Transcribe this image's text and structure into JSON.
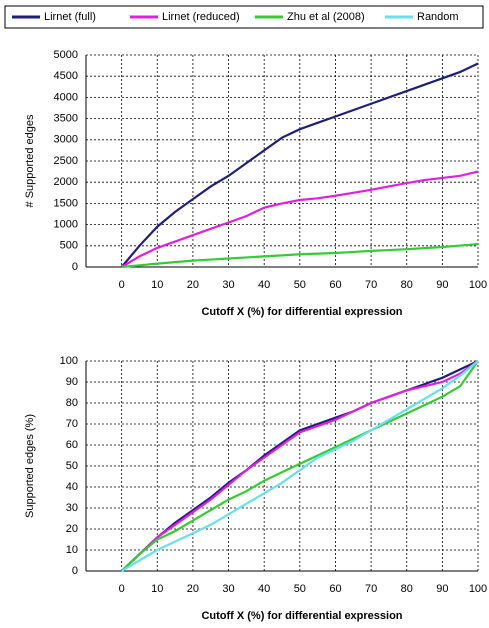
{
  "legend": [
    {
      "name": "Lirnet (full)",
      "color": "#1f1f7a"
    },
    {
      "name": "Lirnet (reduced)",
      "color": "#e020e0"
    },
    {
      "name": "Zhu et al (2008)",
      "color": "#33cc33"
    },
    {
      "name": "Random",
      "color": "#66e0ee"
    }
  ],
  "chart_data": [
    {
      "type": "line",
      "x_label": "Cutoff X (%) for differential expression",
      "y_label": "# Supported edges",
      "x": [
        0,
        5,
        10,
        15,
        20,
        25,
        30,
        35,
        40,
        45,
        50,
        55,
        60,
        65,
        70,
        75,
        80,
        85,
        90,
        95,
        100
      ],
      "series": [
        {
          "color": "#1f1f7a",
          "values": [
            0,
            500,
            950,
            1300,
            1600,
            1900,
            2150,
            2450,
            2750,
            3050,
            3250,
            3400,
            3550,
            3700,
            3850,
            4000,
            4150,
            4300,
            4450,
            4600,
            4800
          ]
        },
        {
          "color": "#e020e0",
          "values": [
            0,
            250,
            450,
            600,
            750,
            900,
            1050,
            1200,
            1400,
            1500,
            1580,
            1620,
            1680,
            1750,
            1820,
            1900,
            1980,
            2050,
            2100,
            2150,
            2250
          ]
        },
        {
          "color": "#33cc33",
          "values": [
            0,
            40,
            80,
            115,
            150,
            175,
            200,
            225,
            250,
            275,
            300,
            315,
            330,
            355,
            380,
            400,
            420,
            445,
            470,
            505,
            540
          ]
        }
      ],
      "xlim": [
        -10,
        100
      ],
      "xticks": [
        0,
        10,
        20,
        30,
        40,
        50,
        60,
        70,
        80,
        90,
        100
      ],
      "ylim": [
        0,
        5000
      ],
      "yticks": [
        0,
        500,
        1000,
        1500,
        2000,
        2500,
        3000,
        3500,
        4000,
        4500,
        5000
      ],
      "grid": true
    },
    {
      "type": "line",
      "x_label": "Cutoff X (%) for differential expression",
      "y_label": "Supported edges (%)",
      "x": [
        0,
        5,
        10,
        15,
        20,
        25,
        30,
        35,
        40,
        45,
        50,
        55,
        60,
        65,
        70,
        75,
        80,
        85,
        90,
        95,
        100
      ],
      "series": [
        {
          "color": "#1f1f7a",
          "values": [
            0,
            8,
            16,
            23,
            29,
            35,
            42,
            48,
            55,
            61,
            67,
            70,
            73,
            76,
            80,
            83,
            86,
            89,
            92,
            96,
            100
          ]
        },
        {
          "color": "#e020e0",
          "values": [
            0,
            8,
            16,
            22,
            28,
            34,
            41,
            48,
            54,
            60,
            66,
            69,
            72,
            76,
            80,
            83,
            86,
            88,
            90,
            94,
            100
          ]
        },
        {
          "color": "#33cc33",
          "values": [
            0,
            8,
            15,
            19,
            24,
            29,
            34,
            38,
            43,
            47,
            51,
            55,
            59,
            63,
            67,
            71,
            75,
            79,
            83,
            88,
            100
          ]
        },
        {
          "color": "#66e0ee",
          "values": [
            0,
            5,
            10,
            14,
            18,
            22,
            27,
            32,
            37,
            42,
            48,
            54,
            58,
            62,
            67,
            72,
            77,
            82,
            87,
            93,
            100
          ]
        }
      ],
      "xlim": [
        -10,
        100
      ],
      "xticks": [
        0,
        10,
        20,
        30,
        40,
        50,
        60,
        70,
        80,
        90,
        100
      ],
      "ylim": [
        0,
        100
      ],
      "yticks": [
        0,
        10,
        20,
        30,
        40,
        50,
        60,
        70,
        80,
        90,
        100
      ],
      "grid": true
    }
  ]
}
